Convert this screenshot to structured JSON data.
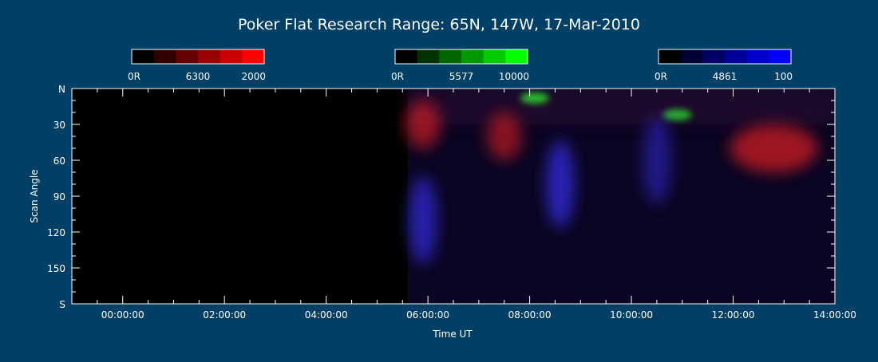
{
  "chart_data": {
    "type": "heatmap",
    "title": "Poker Flat Research Range: 65N, 147W, 17-Mar-2010",
    "xlabel": "Time UT",
    "ylabel": "Scan Angle",
    "x_ticks": [
      "00:00:00",
      "02:00:00",
      "04:00:00",
      "06:00:00",
      "08:00:00",
      "10:00:00",
      "12:00:00",
      "14:00:00"
    ],
    "y_ticks": [
      "N",
      "30",
      "60",
      "90",
      "120",
      "150",
      "S"
    ],
    "x_range_hours": [
      -1.0,
      14.0
    ],
    "y_range_deg": [
      0,
      180
    ],
    "data_start_hour": 5.6,
    "colorbars": [
      {
        "wavelength": "6300",
        "min_label": "0R",
        "max_label": "2000",
        "color": "#ff0000"
      },
      {
        "wavelength": "5577",
        "min_label": "0R",
        "max_label": "10000",
        "color": "#00ff00"
      },
      {
        "wavelength": "4861",
        "min_label": "0R",
        "max_label": "100",
        "color": "#0000ff"
      }
    ],
    "features": [
      {
        "channel": "red",
        "hour": 5.9,
        "angle": 30,
        "intensity": 0.55
      },
      {
        "channel": "red",
        "hour": 7.5,
        "angle": 40,
        "intensity": 0.5
      },
      {
        "channel": "red",
        "hour": 12.8,
        "angle": 50,
        "intensity": 0.6
      },
      {
        "channel": "green",
        "hour": 8.1,
        "angle": 8,
        "intensity": 0.7
      },
      {
        "channel": "green",
        "hour": 10.9,
        "angle": 22,
        "intensity": 0.65
      },
      {
        "channel": "blue",
        "hour": 5.9,
        "angle": 110,
        "intensity": 0.6
      },
      {
        "channel": "blue",
        "hour": 8.6,
        "angle": 80,
        "intensity": 0.65
      },
      {
        "channel": "blue",
        "hour": 10.5,
        "angle": 60,
        "intensity": 0.45
      }
    ]
  }
}
